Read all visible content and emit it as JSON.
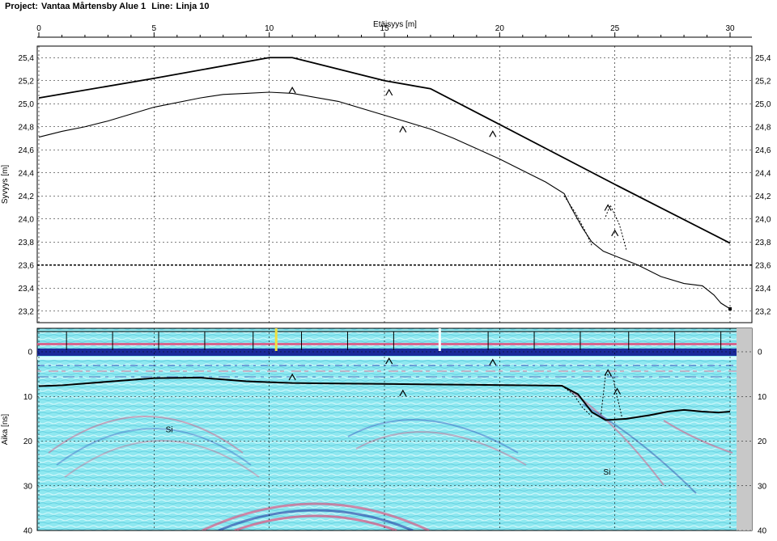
{
  "header": {
    "project_label": "Project:",
    "project_name": "Vantaa Mårtensby Alue 1",
    "line_label": "Line:",
    "line_name": "Linja 10"
  },
  "colors": {
    "surface": "#000000",
    "grid": "#000000",
    "radar_base": "#8fe8f0",
    "radar_blue": "#1b2a9a",
    "radar_pink": "#e0507c",
    "radar_bright": "#e8ffff",
    "marker_yellow": "#f0e040",
    "marker_white": "#ffffff",
    "edge_grey": "#c8c8c8"
  },
  "chart_data": [
    {
      "type": "line",
      "xlabel": "Etäisyys [m]",
      "ylabel": "Syvyys [m]",
      "xlim": [
        0,
        30
      ],
      "ylim": [
        23.1,
        25.5
      ],
      "x_ticks": [
        0,
        5,
        10,
        15,
        20,
        25,
        30
      ],
      "x_tick_labels": [
        "0",
        "5",
        "10",
        "15",
        "20",
        "25",
        "30"
      ],
      "y_ticks": [
        23.2,
        23.4,
        23.6,
        23.8,
        24.0,
        24.2,
        24.4,
        24.6,
        24.8,
        25.0,
        25.2,
        25.4
      ],
      "y_tick_labels": [
        "23,2",
        "23,4",
        "23,6",
        "23,8",
        "24,0",
        "24,2",
        "24,4",
        "24,6",
        "24,8",
        "25,0",
        "25,2",
        "25,4"
      ],
      "grid": true,
      "reference_line_y": 23.6,
      "series": [
        {
          "style": "thick",
          "x": [
            0,
            5,
            10,
            11,
            15,
            17,
            20,
            25,
            30
          ],
          "y": [
            25.05,
            25.22,
            25.4,
            25.4,
            25.2,
            25.13,
            24.82,
            24.3,
            23.79
          ]
        },
        {
          "style": "thin",
          "x": [
            0,
            1,
            2,
            3,
            5,
            7,
            8,
            9,
            10,
            11,
            13,
            15,
            17,
            18,
            20,
            22,
            22.8,
            23.1,
            23.6,
            24,
            24.5,
            25,
            26,
            27,
            28,
            28.8,
            29.3,
            29.6,
            30
          ],
          "y": [
            24.71,
            24.76,
            24.8,
            24.85,
            24.97,
            25.05,
            25.08,
            25.09,
            25.1,
            25.09,
            25.02,
            24.9,
            24.78,
            24.7,
            24.52,
            24.32,
            24.22,
            24.1,
            23.92,
            23.8,
            23.72,
            23.68,
            23.6,
            23.5,
            23.44,
            23.42,
            23.34,
            23.27,
            23.22
          ]
        },
        {
          "style": "dashed",
          "x": [
            22.8,
            23.3,
            23.7,
            24.0
          ],
          "y": [
            24.2,
            24.05,
            23.9,
            23.77
          ]
        },
        {
          "style": "dashed",
          "x": [
            24.6,
            24.8,
            25.2,
            25.5
          ],
          "y": [
            24.02,
            24.12,
            23.95,
            23.73
          ]
        }
      ],
      "markers": [
        {
          "x": 11.0,
          "y": 25.12
        },
        {
          "x": 15.2,
          "y": 25.1
        },
        {
          "x": 15.8,
          "y": 24.78
        },
        {
          "x": 19.7,
          "y": 24.74
        },
        {
          "x": 24.7,
          "y": 24.1
        },
        {
          "x": 25.0,
          "y": 23.88
        }
      ]
    },
    {
      "type": "heatmap",
      "xlabel": "",
      "ylabel": "Aika [ns]",
      "xlim": [
        0,
        30
      ],
      "ylim": [
        0,
        40
      ],
      "y_ticks": [
        0,
        10,
        20,
        30,
        40
      ],
      "y_tick_labels": [
        "0",
        "10",
        "20",
        "30",
        "40"
      ],
      "trace_marks_x": [
        1.2,
        3.2,
        5.2,
        7.2,
        9.3,
        11.4,
        13.4,
        15.4,
        17.4,
        19.5,
        21.5,
        23.5,
        25.6,
        27.6,
        29.6
      ],
      "yellow_mark_x": 10.3,
      "white_mark_x": 17.4,
      "interface_line": {
        "x": [
          0,
          0.5,
          1,
          3,
          5,
          7,
          8,
          9,
          10,
          11,
          13,
          15,
          17,
          19,
          21,
          22.7,
          23.4,
          24,
          24.6,
          25.5,
          26.5,
          27.3,
          28,
          28.8,
          29.5,
          30
        ],
        "y": [
          7.7,
          7.6,
          7.5,
          6.7,
          5.9,
          5.8,
          6.2,
          6.6,
          6.8,
          7.0,
          7.1,
          7.2,
          7.3,
          7.4,
          7.5,
          7.6,
          9.5,
          13.5,
          15.3,
          15.0,
          14.2,
          13.4,
          13.0,
          13.4,
          13.6,
          13.4
        ]
      },
      "markers": [
        {
          "x": 11.0,
          "y": 5.6
        },
        {
          "x": 15.2,
          "y": 2.0
        },
        {
          "x": 15.8,
          "y": 9.2
        },
        {
          "x": 19.7,
          "y": 2.3
        },
        {
          "x": 24.7,
          "y": 4.6
        },
        {
          "x": 25.1,
          "y": 8.8
        }
      ],
      "annotations": [
        {
          "text": "Si",
          "x": 5.5,
          "y": 18.0
        },
        {
          "text": "Si",
          "x": 24.5,
          "y": 27.5
        }
      ]
    }
  ]
}
